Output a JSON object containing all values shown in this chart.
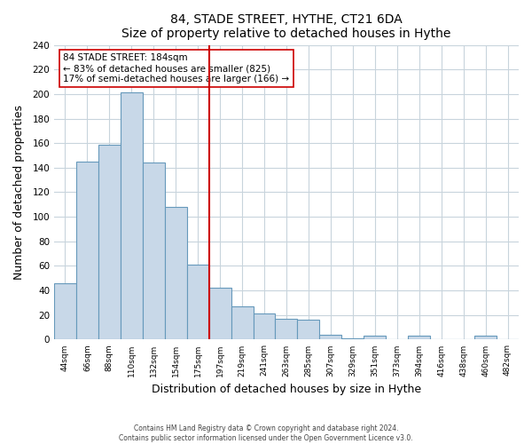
{
  "title": "84, STADE STREET, HYTHE, CT21 6DA",
  "subtitle": "Size of property relative to detached houses in Hythe",
  "xlabel": "Distribution of detached houses by size in Hythe",
  "ylabel": "Number of detached properties",
  "bar_labels": [
    "44sqm",
    "66sqm",
    "88sqm",
    "110sqm",
    "132sqm",
    "154sqm",
    "175sqm",
    "197sqm",
    "219sqm",
    "241sqm",
    "263sqm",
    "285sqm",
    "307sqm",
    "329sqm",
    "351sqm",
    "373sqm",
    "394sqm",
    "416sqm",
    "438sqm",
    "460sqm",
    "482sqm"
  ],
  "bar_heights": [
    46,
    145,
    159,
    201,
    144,
    108,
    61,
    42,
    27,
    21,
    17,
    16,
    4,
    1,
    3,
    0,
    3,
    0,
    0,
    3,
    0
  ],
  "bar_color": "#c8d8e8",
  "bar_edge_color": "#6699bb",
  "vline_x": 6.5,
  "vline_color": "#cc0000",
  "annotation_title": "84 STADE STREET: 184sqm",
  "annotation_line1": "← 83% of detached houses are smaller (825)",
  "annotation_line2": "17% of semi-detached houses are larger (166) →",
  "annotation_box_color": "#ffffff",
  "annotation_box_edge": "#cc0000",
  "ylim": [
    0,
    240
  ],
  "yticks": [
    0,
    20,
    40,
    60,
    80,
    100,
    120,
    140,
    160,
    180,
    200,
    220,
    240
  ],
  "footer_line1": "Contains HM Land Registry data © Crown copyright and database right 2024.",
  "footer_line2": "Contains public sector information licensed under the Open Government Licence v3.0.",
  "background_color": "#ffffff",
  "grid_color": "#c8d4dc"
}
